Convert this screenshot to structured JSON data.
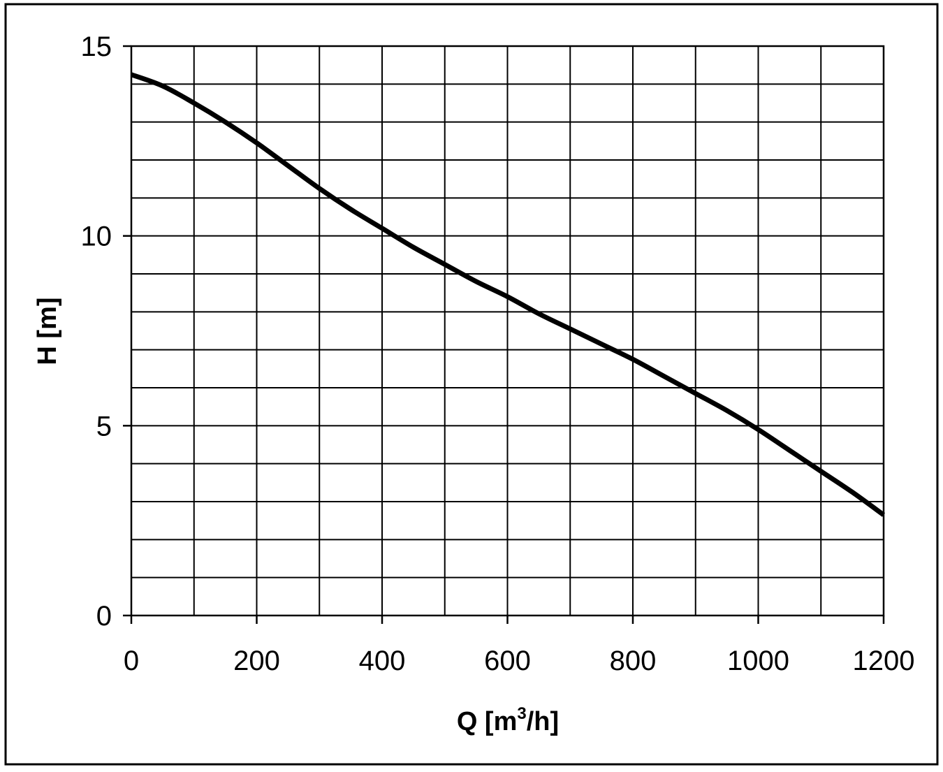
{
  "chart_data": {
    "type": "line",
    "title": "",
    "xlabel": "Q [m",
    "xlabel_superscript": "3",
    "xlabel_suffix": "/h]",
    "ylabel": "H [m]",
    "xlim": [
      0,
      1200
    ],
    "ylim": [
      0,
      15
    ],
    "x_major_ticks": [
      0,
      200,
      400,
      600,
      800,
      1000,
      1200
    ],
    "x_tick_labels": [
      "0",
      "200",
      "400",
      "600",
      "800",
      "1000",
      "1200"
    ],
    "y_major_ticks": [
      0,
      5,
      10,
      15
    ],
    "y_tick_labels": [
      "0",
      "5",
      "10",
      "15"
    ],
    "x_grid_step": 100,
    "y_grid_step": 1,
    "grid": true,
    "legend": "none",
    "colors": {
      "line": "#000000",
      "grid": "#000000",
      "frame": "#000000",
      "background": "#ffffff"
    },
    "series": [
      {
        "x": [
          0,
          50,
          100,
          150,
          200,
          250,
          300,
          350,
          400,
          450,
          500,
          550,
          600,
          650,
          700,
          750,
          800,
          850,
          900,
          950,
          1000,
          1050,
          1100,
          1150,
          1200
        ],
        "y": [
          14.25,
          13.95,
          13.5,
          13.0,
          12.45,
          11.85,
          11.25,
          10.7,
          10.2,
          9.7,
          9.25,
          8.8,
          8.4,
          7.95,
          7.55,
          7.15,
          6.75,
          6.3,
          5.85,
          5.4,
          4.9,
          4.35,
          3.8,
          3.25,
          2.65
        ]
      }
    ]
  }
}
